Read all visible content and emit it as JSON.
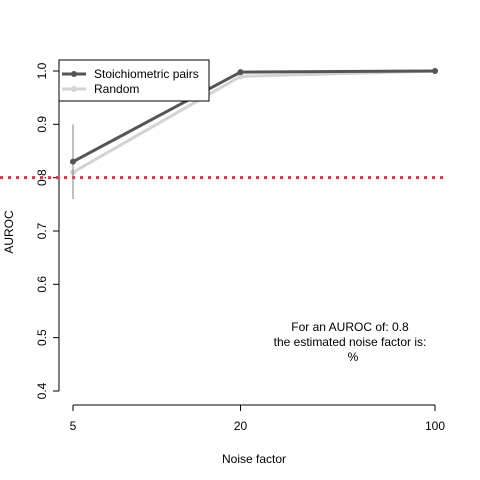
{
  "chart_data": {
    "type": "line",
    "x_scale": "log",
    "xlabel": "Noise factor",
    "ylabel": "AUROC",
    "xlim": [
      5,
      100
    ],
    "ylim": [
      0.4,
      1.0
    ],
    "x_ticks": [
      5,
      20,
      100
    ],
    "x_tick_labels": [
      "5",
      "20",
      "100"
    ],
    "y_ticks": [
      0.4,
      0.5,
      0.6,
      0.7,
      0.8,
      0.9,
      1.0
    ],
    "y_tick_labels": [
      "0.4",
      "0.5",
      "0.6",
      "0.7",
      "0.8",
      "0.9",
      "1.0"
    ],
    "grid": false,
    "legend": "top-left",
    "series": [
      {
        "name": "Stoichiometric pairs",
        "color": "#555555",
        "x": [
          5,
          20,
          100
        ],
        "y": [
          0.83,
          0.998,
          1.0
        ],
        "error_bars": [
          {
            "x": 5,
            "low": 0.76,
            "high": 0.9
          }
        ]
      },
      {
        "name": "Random",
        "color": "#d3d3d3",
        "x": [
          5,
          20,
          100
        ],
        "y": [
          0.81,
          0.99,
          1.0
        ]
      }
    ],
    "reference_line": {
      "y": 0.8,
      "color": "#dc3545",
      "style": "dotted"
    },
    "annotation": [
      "For an AUROC of: 0.8",
      "the estimated noise factor is:",
      "%"
    ]
  }
}
